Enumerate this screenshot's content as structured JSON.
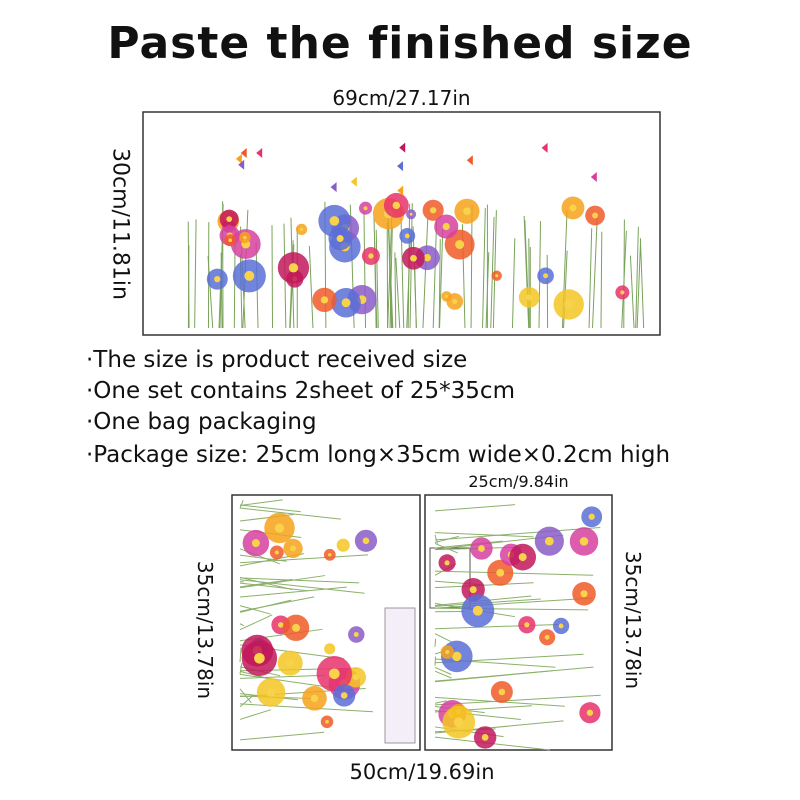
{
  "title": "Paste the finished size",
  "top_sticker": {
    "width_label": "69cm/27.17in",
    "height_label": "30cm/11.81in"
  },
  "notes": [
    "·The size is product received size",
    "·One set contains 2sheet of 25*35cm",
    "·One bag packaging",
    "·Package size: 25cm long×35cm wide×0.2cm high"
  ],
  "sheets": {
    "sheet_width_label": "25cm/9.84in",
    "left_height_label": "35cm/13.78in",
    "right_height_label": "35cm/13.78in",
    "total_width_label": "50cm/19.69in"
  }
}
